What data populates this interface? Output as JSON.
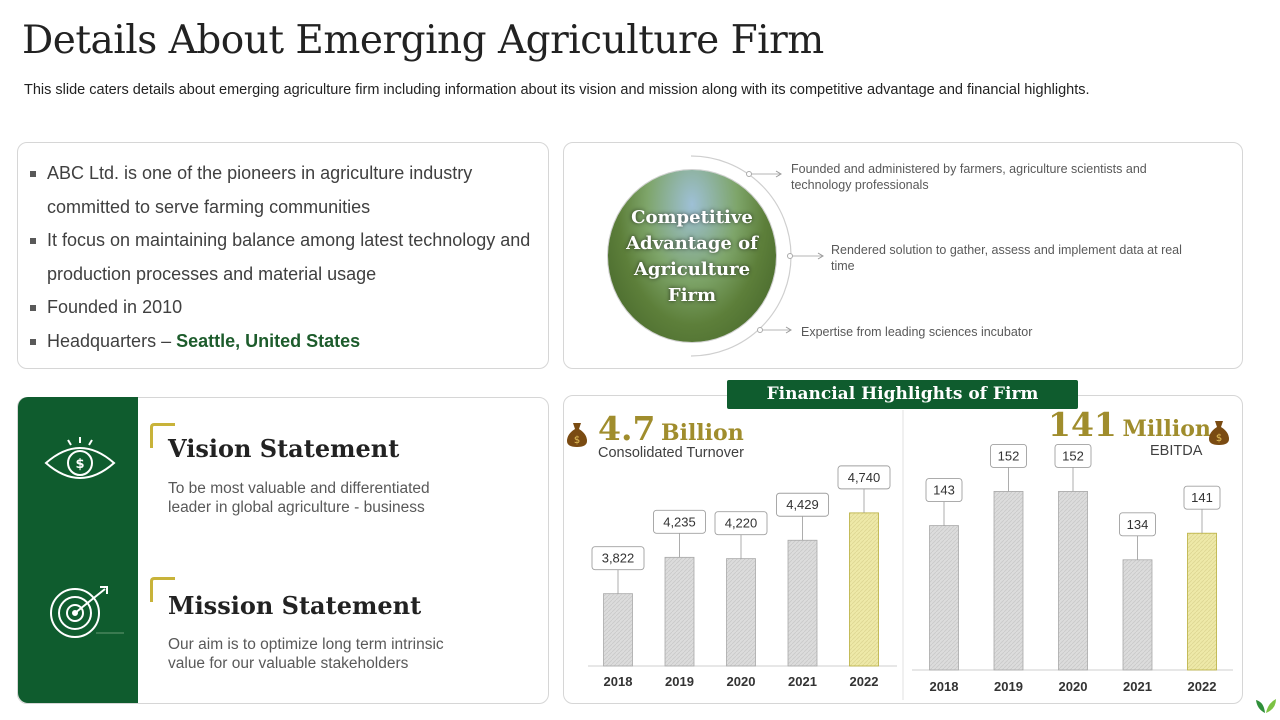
{
  "header": {
    "title": "Details About Emerging  Agriculture Firm",
    "subtitle": "This slide caters details about emerging agriculture firm including information about its vision and mission along with its competitive advantage and financial highlights."
  },
  "about": {
    "bullets": [
      "ABC Ltd. is one of the pioneers in agriculture industry committed to serve farming communities",
      "It focus on maintaining balance among latest technology and production processes and material usage",
      "Founded in 2010"
    ],
    "hq_prefix": "Headquarters – ",
    "hq_value": "Seattle, United States"
  },
  "advantage": {
    "circle_title": "Competitive Advantage of Agriculture Firm",
    "items": [
      "Founded and administered by farmers, agriculture scientists and technology professionals",
      "Rendered solution to gather, assess and implement data at real time",
      "Expertise from leading sciences incubator"
    ]
  },
  "vision": {
    "heading": "Vision Statement",
    "text": "To be most valuable and differentiated leader in global agriculture - business",
    "icon": "eye-dollar-icon"
  },
  "mission": {
    "heading": "Mission Statement",
    "text": "Our aim is to optimize long term intrinsic value for our valuable stakeholders",
    "icon": "target-arrow-icon"
  },
  "financial": {
    "banner": "Financial Highlights of Firm",
    "turnover": {
      "value": "4.7",
      "unit": "Billion",
      "label": "Consolidated Turnover",
      "icon": "money-bag-icon"
    },
    "ebitda": {
      "value": "141",
      "unit": "Million",
      "label": "EBITDA",
      "icon": "money-bag-icon"
    }
  },
  "colors": {
    "brand_green": "#0f5c2e",
    "gold": "#a08d2d",
    "bar_gray": "#d9d9d9",
    "bar_highlight": "#ece7a4"
  },
  "chart_data": [
    {
      "type": "bar",
      "categories": [
        "2018",
        "2019",
        "2020",
        "2021",
        "2022"
      ],
      "values": [
        3822,
        4235,
        4220,
        4429,
        4740
      ],
      "labels": [
        "3,822",
        "4,235",
        "4,220",
        "4,429",
        "4,740"
      ],
      "highlight_index": 4,
      "ylim": [
        3000,
        5000
      ],
      "grid": false
    },
    {
      "type": "bar",
      "categories": [
        "2018",
        "2019",
        "2020",
        "2021",
        "2022"
      ],
      "values": [
        143,
        152,
        152,
        134,
        141
      ],
      "labels": [
        "143",
        "152",
        "152",
        "134",
        "141"
      ],
      "highlight_index": 4,
      "ylim": [
        105,
        155
      ],
      "grid": false
    }
  ]
}
